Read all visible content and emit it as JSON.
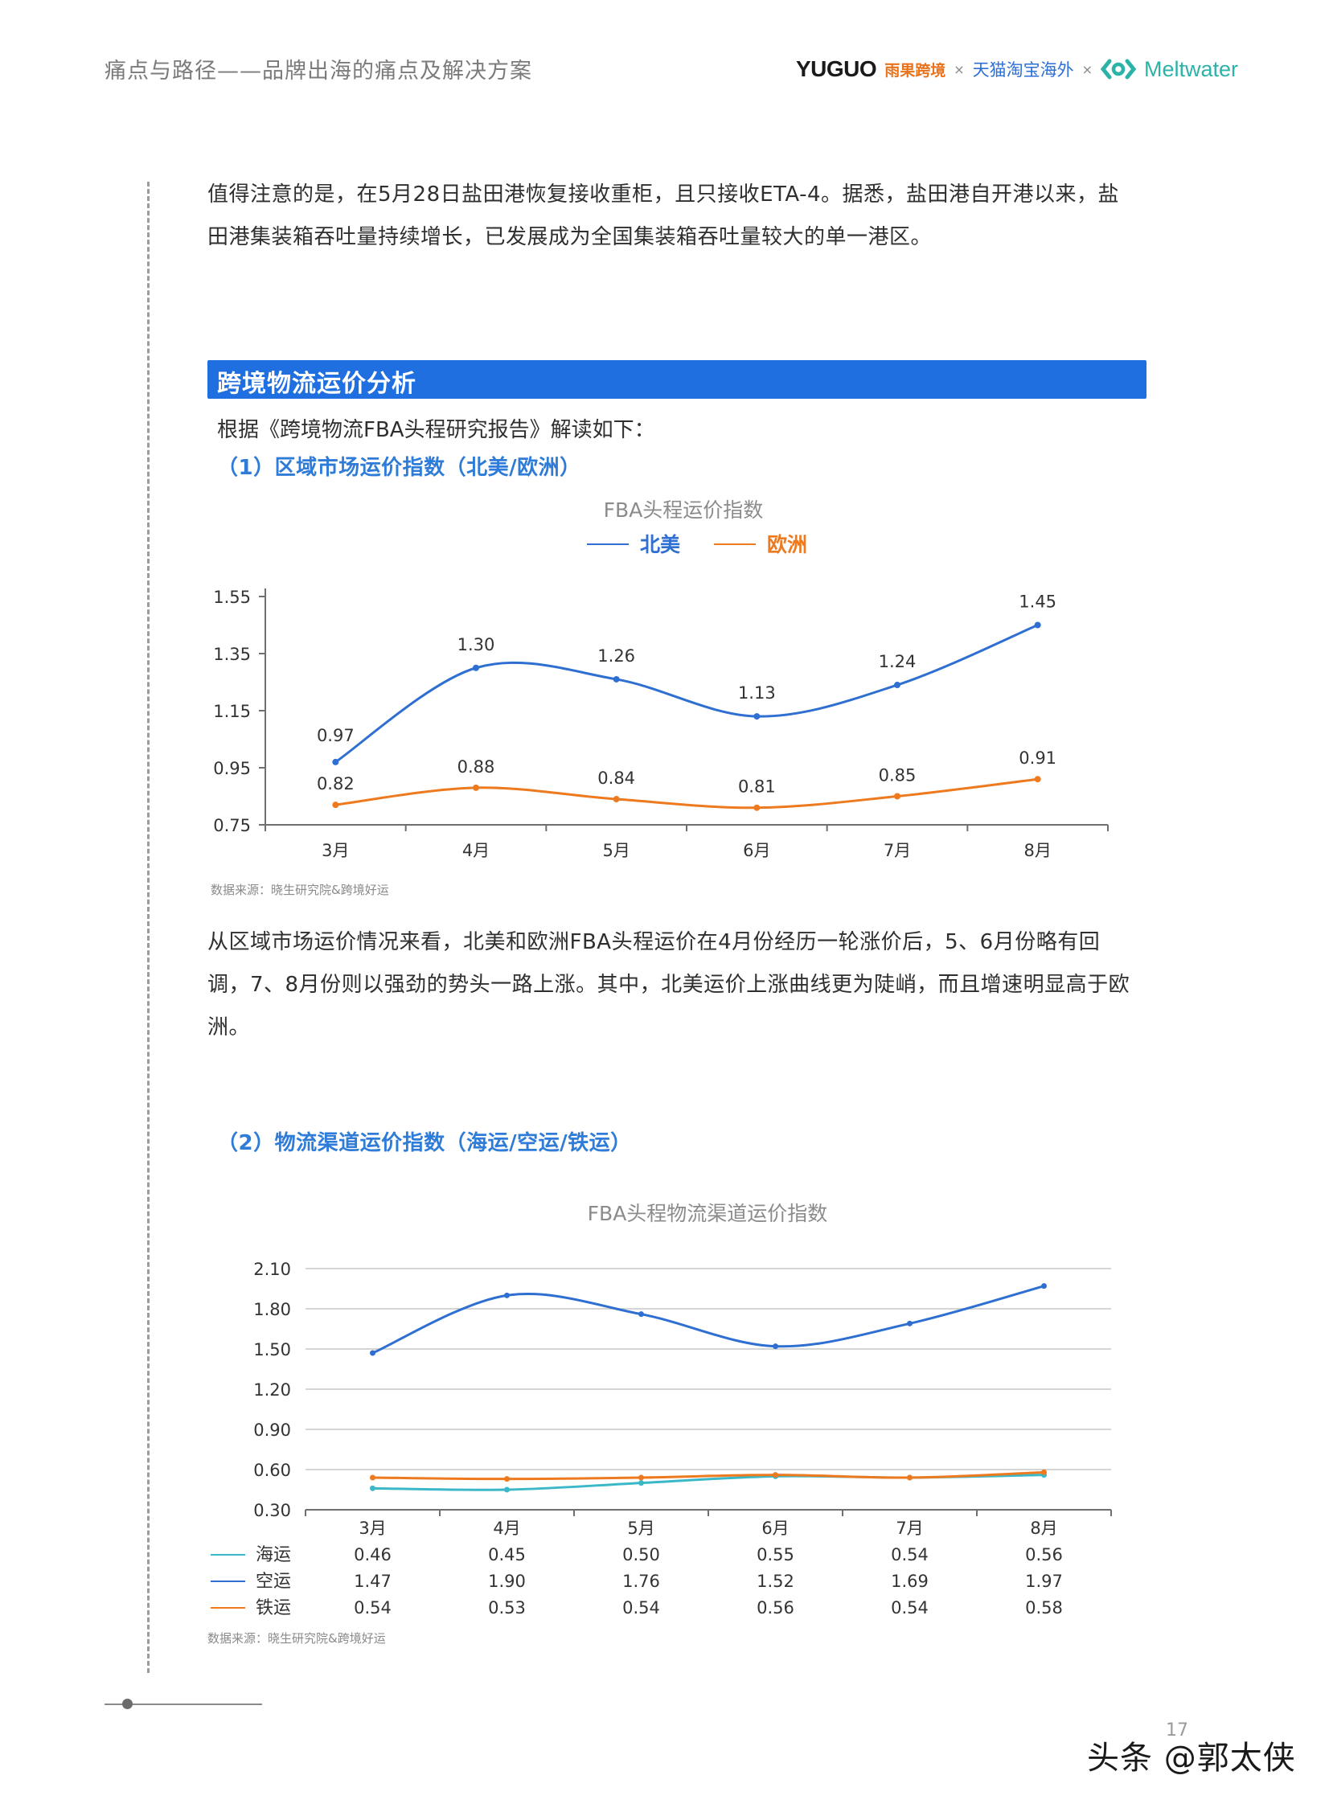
{
  "header": {
    "title": "痛点与路径——品牌出海的痛点及解决方案",
    "logos": {
      "yuguo": "YUGUO",
      "yuguo_cn": "雨果跨境",
      "tmall": "天猫淘宝海外",
      "meltwater": "Meltwater",
      "times": "×"
    }
  },
  "paragraph1": "值得注意的是，在5月28日盐田港恢复接收重柜，且只接收ETA-4。据悉，盐田港自开港以来，盐田港集装箱吞吐量持续增长，已发展成为全国集装箱吞吐量较大的单一港区。",
  "section": {
    "title": "跨境物流运价分析",
    "intro": "根据《跨境物流FBA头程研究报告》解读如下：",
    "sub1": "（1）区域市场运价指数（北美/欧洲）",
    "sub2": "（2）物流渠道运价指数（海运/空运/铁运）"
  },
  "paragraph2": "从区域市场运价情况来看，北美和欧洲FBA头程运价在4月份经历一轮涨价后，5、6月份略有回调，7、8月份则以强劲的势头一路上涨。其中，北美运价上涨曲线更为陡峭，而且增速明显高于欧洲。",
  "chart_data": [
    {
      "type": "line",
      "title": "FBA头程运价指数",
      "categories": [
        "3月",
        "4月",
        "5月",
        "6月",
        "7月",
        "8月"
      ],
      "series": [
        {
          "name": "北美",
          "color": "#2e6fd1",
          "values": [
            0.97,
            1.3,
            1.26,
            1.13,
            1.24,
            1.45
          ],
          "labels": [
            "0.97",
            "1.30",
            "1.26",
            "1.13",
            "1.24",
            "1.45"
          ]
        },
        {
          "name": "欧洲",
          "color": "#ee7a1f",
          "values": [
            0.82,
            0.88,
            0.84,
            0.81,
            0.85,
            0.91
          ],
          "labels": [
            "0.82",
            "0.88",
            "0.84",
            "0.81",
            "0.85",
            "0.91"
          ]
        }
      ],
      "yticks": [
        "0.75",
        "0.95",
        "1.15",
        "1.35",
        "1.55"
      ],
      "ylim": [
        0.75,
        1.55
      ],
      "legend": "top",
      "source": "数据来源：晓生研究院&跨境好运"
    },
    {
      "type": "line",
      "title": "FBA头程物流渠道运价指数",
      "categories": [
        "3月",
        "4月",
        "5月",
        "6月",
        "7月",
        "8月"
      ],
      "series": [
        {
          "name": "海运",
          "color": "#3bb8c8",
          "values": [
            0.46,
            0.45,
            0.5,
            0.55,
            0.54,
            0.56
          ],
          "labels": [
            "0.46",
            "0.45",
            "0.50",
            "0.55",
            "0.54",
            "0.56"
          ]
        },
        {
          "name": "空运",
          "color": "#2e6fd1",
          "values": [
            1.47,
            1.9,
            1.76,
            1.52,
            1.69,
            1.97
          ],
          "labels": [
            "1.47",
            "1.90",
            "1.76",
            "1.52",
            "1.69",
            "1.97"
          ]
        },
        {
          "name": "铁运",
          "color": "#ee7a1f",
          "values": [
            0.54,
            0.53,
            0.54,
            0.56,
            0.54,
            0.58
          ],
          "labels": [
            "0.54",
            "0.53",
            "0.54",
            "0.56",
            "0.54",
            "0.58"
          ]
        }
      ],
      "yticks": [
        "0.30",
        "0.60",
        "0.90",
        "1.20",
        "1.50",
        "1.80",
        "2.10"
      ],
      "ylim": [
        0.3,
        2.1
      ],
      "grid": true,
      "legend": "data-table",
      "source": "数据来源：晓生研究院&跨境好运"
    }
  ],
  "footer": {
    "page_number": "17",
    "watermark": "头条 @郭太侠"
  }
}
